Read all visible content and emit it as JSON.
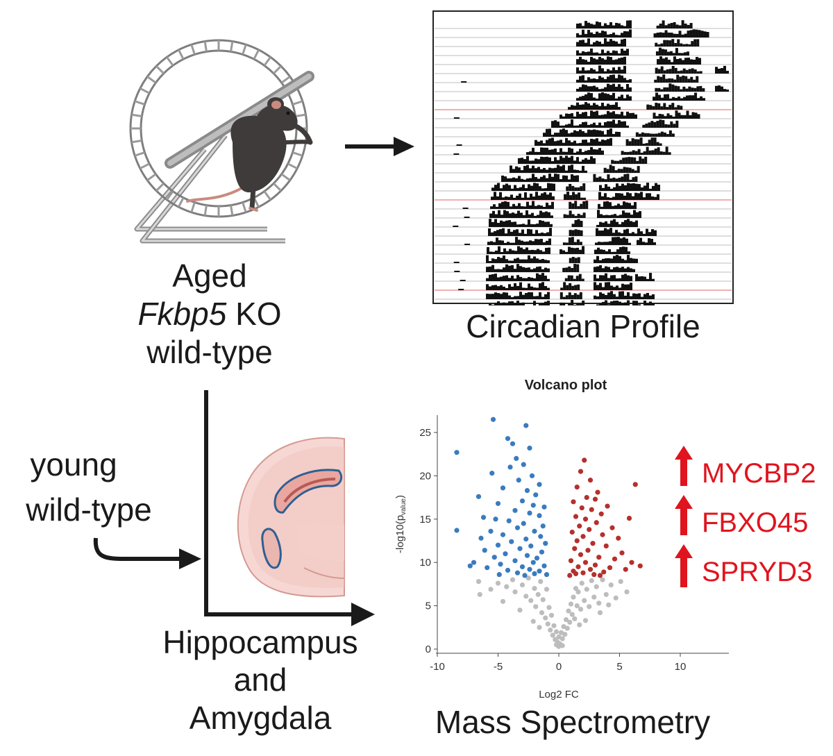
{
  "labels": {
    "aged": "Aged",
    "fkbp5": "Fkbp5",
    "ko": " KO",
    "wild_type": "wild-type",
    "young": "young",
    "young_wild_type": "wild-type",
    "circadian": "Circadian Profile",
    "hippocampus": "Hippocampus",
    "and": "and",
    "amygdala": "Amygdala",
    "mass_spec": "Mass Spectrometry"
  },
  "proteins": [
    "MYCBP2",
    "FBXO45",
    "SPRYD3"
  ],
  "colors": {
    "up": "#b5302c",
    "down": "#3a7bbf",
    "ns": "#bdbdbd",
    "arrow_red": "#e0141e",
    "ink": "#1a1a1a",
    "actogram_red_line": "#e06060"
  },
  "icons": {
    "wheel": "running-wheel-icon",
    "mouse": "mouse-icon",
    "brain": "brain-slice-icon",
    "up_arrow": "up-arrow-icon"
  },
  "chart_data": {
    "type": "scatter",
    "title": "Volcano plot",
    "xlabel": "Log2 FC",
    "ylabel_main": "-log10(p",
    "ylabel_sub": "value",
    "ylabel_close": ")",
    "xlim": [
      -10,
      14
    ],
    "ylim": [
      0,
      27
    ],
    "xticks": [
      -10,
      -5,
      0,
      5,
      10
    ],
    "yticks": [
      0,
      5,
      10,
      15,
      20,
      25
    ],
    "grid": false,
    "series": [
      {
        "name": "up",
        "points": [
          [
            2.1,
            21.8
          ],
          [
            6.3,
            19.0
          ],
          [
            1.8,
            20.5
          ],
          [
            2.6,
            19.5
          ],
          [
            1.5,
            18.7
          ],
          [
            3.2,
            18.1
          ],
          [
            2.3,
            17.5
          ],
          [
            3.0,
            17.3
          ],
          [
            1.2,
            17.0
          ],
          [
            4.0,
            16.5
          ],
          [
            1.9,
            16.3
          ],
          [
            2.7,
            16.1
          ],
          [
            3.5,
            15.6
          ],
          [
            5.8,
            15.1
          ],
          [
            1.4,
            15.3
          ],
          [
            2.2,
            15.0
          ],
          [
            3.1,
            14.6
          ],
          [
            1.7,
            14.2
          ],
          [
            4.4,
            14.0
          ],
          [
            2.5,
            13.8
          ],
          [
            1.1,
            13.5
          ],
          [
            3.6,
            13.2
          ],
          [
            2.0,
            13.0
          ],
          [
            4.9,
            12.8
          ],
          [
            1.5,
            12.5
          ],
          [
            2.8,
            12.2
          ],
          [
            3.9,
            11.9
          ],
          [
            1.3,
            11.6
          ],
          [
            2.4,
            11.4
          ],
          [
            5.2,
            11.1
          ],
          [
            1.8,
            10.9
          ],
          [
            3.3,
            10.6
          ],
          [
            4.6,
            10.4
          ],
          [
            1.0,
            10.2
          ],
          [
            2.2,
            10.0
          ],
          [
            6.0,
            10.0
          ],
          [
            3.0,
            9.7
          ],
          [
            1.6,
            9.5
          ],
          [
            4.2,
            9.4
          ],
          [
            2.6,
            9.2
          ],
          [
            6.7,
            9.6
          ],
          [
            1.2,
            9.0
          ],
          [
            3.7,
            8.9
          ],
          [
            2.0,
            8.8
          ],
          [
            5.5,
            9.2
          ],
          [
            1.4,
            8.7
          ],
          [
            2.9,
            8.6
          ],
          [
            0.9,
            8.5
          ],
          [
            3.4,
            8.5
          ]
        ]
      },
      {
        "name": "down",
        "points": [
          [
            -5.4,
            26.5
          ],
          [
            -2.7,
            25.8
          ],
          [
            -4.2,
            24.3
          ],
          [
            -3.8,
            23.7
          ],
          [
            -2.4,
            23.2
          ],
          [
            -8.4,
            22.7
          ],
          [
            -3.5,
            22.0
          ],
          [
            -4.0,
            21.0
          ],
          [
            -2.9,
            21.3
          ],
          [
            -5.5,
            20.3
          ],
          [
            -2.2,
            20.0
          ],
          [
            -3.3,
            19.5
          ],
          [
            -1.6,
            19.0
          ],
          [
            -4.6,
            18.6
          ],
          [
            -2.6,
            18.3
          ],
          [
            -6.6,
            17.6
          ],
          [
            -1.9,
            17.8
          ],
          [
            -3.0,
            17.1
          ],
          [
            -5.0,
            16.8
          ],
          [
            -2.1,
            16.6
          ],
          [
            -1.2,
            16.4
          ],
          [
            -3.6,
            16.0
          ],
          [
            -6.2,
            15.2
          ],
          [
            -2.4,
            15.7
          ],
          [
            -5.2,
            15.0
          ],
          [
            -1.6,
            15.4
          ],
          [
            -4.1,
            14.8
          ],
          [
            -2.9,
            14.5
          ],
          [
            -1.3,
            14.2
          ],
          [
            -8.4,
            13.7
          ],
          [
            -3.4,
            14.0
          ],
          [
            -5.6,
            13.6
          ],
          [
            -2.0,
            13.6
          ],
          [
            -4.6,
            13.2
          ],
          [
            -1.5,
            13.0
          ],
          [
            -6.4,
            12.8
          ],
          [
            -2.7,
            12.7
          ],
          [
            -3.9,
            12.4
          ],
          [
            -1.1,
            12.2
          ],
          [
            -5.0,
            12.0
          ],
          [
            -2.3,
            11.9
          ],
          [
            -3.2,
            11.6
          ],
          [
            -6.1,
            11.4
          ],
          [
            -1.4,
            11.2
          ],
          [
            -4.4,
            11.0
          ],
          [
            -2.6,
            10.8
          ],
          [
            -5.3,
            10.6
          ],
          [
            -1.8,
            10.5
          ],
          [
            -3.6,
            10.2
          ],
          [
            -7.0,
            10.0
          ],
          [
            -2.1,
            10.0
          ],
          [
            -4.8,
            9.8
          ],
          [
            -1.2,
            9.6
          ],
          [
            -3.0,
            9.5
          ],
          [
            -7.3,
            9.6
          ],
          [
            -5.9,
            9.4
          ],
          [
            -2.4,
            9.2
          ],
          [
            -4.2,
            9.1
          ],
          [
            -1.6,
            9.0
          ],
          [
            -3.4,
            8.8
          ],
          [
            -2.0,
            8.7
          ],
          [
            -1.0,
            8.6
          ],
          [
            -4.9,
            8.6
          ],
          [
            -2.8,
            8.5
          ]
        ]
      },
      {
        "name": "ns",
        "points": [
          [
            -6.6,
            7.8
          ],
          [
            -6.5,
            6.3
          ],
          [
            -5.0,
            7.6
          ],
          [
            -4.3,
            7.2
          ],
          [
            -3.8,
            8.0
          ],
          [
            -3.6,
            6.6
          ],
          [
            -3.0,
            7.4
          ],
          [
            -2.7,
            6.1
          ],
          [
            -2.5,
            8.2
          ],
          [
            -2.3,
            5.6
          ],
          [
            -2.0,
            7.0
          ],
          [
            -1.9,
            4.9
          ],
          [
            -1.7,
            6.3
          ],
          [
            -1.5,
            7.8
          ],
          [
            -1.4,
            4.2
          ],
          [
            -1.3,
            5.7
          ],
          [
            -1.1,
            3.6
          ],
          [
            -1.0,
            6.9
          ],
          [
            -0.9,
            2.9
          ],
          [
            -0.8,
            4.8
          ],
          [
            -0.7,
            2.2
          ],
          [
            -0.6,
            3.9
          ],
          [
            -0.5,
            1.6
          ],
          [
            -0.4,
            2.7
          ],
          [
            -0.3,
            1.1
          ],
          [
            -0.2,
            2.0
          ],
          [
            -0.1,
            0.8
          ],
          [
            0.0,
            1.4
          ],
          [
            0.1,
            0.6
          ],
          [
            0.2,
            1.9
          ],
          [
            0.3,
            1.2
          ],
          [
            0.4,
            2.6
          ],
          [
            0.5,
            1.7
          ],
          [
            0.6,
            3.4
          ],
          [
            0.7,
            2.4
          ],
          [
            0.8,
            4.4
          ],
          [
            0.9,
            3.1
          ],
          [
            1.0,
            5.2
          ],
          [
            1.1,
            4.0
          ],
          [
            1.2,
            6.0
          ],
          [
            1.3,
            3.5
          ],
          [
            1.4,
            7.0
          ],
          [
            1.5,
            5.0
          ],
          [
            1.6,
            6.6
          ],
          [
            1.8,
            4.6
          ],
          [
            1.9,
            7.6
          ],
          [
            2.1,
            5.6
          ],
          [
            2.3,
            6.9
          ],
          [
            2.5,
            4.9
          ],
          [
            2.7,
            7.9
          ],
          [
            2.9,
            6.0
          ],
          [
            3.1,
            7.2
          ],
          [
            3.3,
            5.3
          ],
          [
            3.6,
            8.0
          ],
          [
            3.9,
            6.3
          ],
          [
            4.3,
            7.4
          ],
          [
            4.7,
            5.9
          ],
          [
            5.1,
            7.8
          ],
          [
            -3.2,
            4.5
          ],
          [
            -2.1,
            3.2
          ],
          [
            2.2,
            3.3
          ],
          [
            3.4,
            4.2
          ],
          [
            -4.6,
            5.5
          ],
          [
            4.1,
            5.1
          ],
          [
            -1.6,
            2.5
          ],
          [
            1.7,
            2.8
          ],
          [
            0.0,
            0.3
          ],
          [
            -0.2,
            0.5
          ],
          [
            0.3,
            0.4
          ],
          [
            -5.6,
            6.9
          ],
          [
            5.6,
            6.6
          ]
        ]
      }
    ]
  }
}
